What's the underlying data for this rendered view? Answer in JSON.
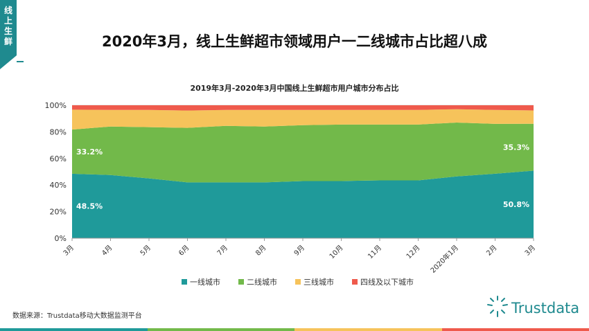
{
  "side_tab": "线上生鲜",
  "page_title": "2020年3月，线上生鲜超市领域用户一二线城市占比超八成",
  "footnote": "数据来源：Trustdata移动大数据监测平台",
  "logo_text": "Trustdata",
  "colors": {
    "tier1": "#1f9a9a",
    "tier2": "#72b94a",
    "tier3": "#f6c35b",
    "tier4": "#ef5a4c",
    "brand": "#1f8a8f"
  },
  "chart_data": {
    "type": "area",
    "stacked": true,
    "title": "2019年3月-2020年3月中国线上生鲜超市用户城市分布占比",
    "categories": [
      "3月",
      "4月",
      "5月",
      "6月",
      "7月",
      "8月",
      "9月",
      "10月",
      "11月",
      "12月",
      "2020年1月",
      "2月",
      "3月"
    ],
    "ylim": [
      0,
      100
    ],
    "yticks": [
      "0%",
      "20%",
      "40%",
      "60%",
      "80%",
      "100%"
    ],
    "grid": true,
    "legend_position": "bottom",
    "series": [
      {
        "name": "一线城市",
        "color": "#1f9a9a",
        "values": [
          48.5,
          47.5,
          45.0,
          42.0,
          42.0,
          42.0,
          43.0,
          43.0,
          43.5,
          43.5,
          46.5,
          48.5,
          50.8
        ]
      },
      {
        "name": "二线城市",
        "color": "#72b94a",
        "values": [
          33.2,
          36.5,
          38.5,
          41.0,
          42.5,
          42.0,
          42.0,
          42.5,
          42.0,
          42.0,
          40.5,
          37.5,
          35.3
        ]
      },
      {
        "name": "三线城市",
        "color": "#f6c35b",
        "values": [
          15.0,
          12.5,
          13.0,
          13.0,
          12.0,
          12.5,
          11.5,
          11.0,
          11.0,
          11.0,
          10.0,
          10.5,
          10.0
        ]
      },
      {
        "name": "四线及以下城市",
        "color": "#ef5a4c",
        "values": [
          3.3,
          3.5,
          3.5,
          4.0,
          3.5,
          3.5,
          3.5,
          3.5,
          3.5,
          3.5,
          3.0,
          3.5,
          3.9
        ]
      }
    ],
    "data_labels": [
      {
        "series": 0,
        "index": 0,
        "text": "48.5%"
      },
      {
        "series": 1,
        "index": 0,
        "text": "33.2%"
      },
      {
        "series": 0,
        "index": 12,
        "text": "50.8%"
      },
      {
        "series": 1,
        "index": 12,
        "text": "35.3%"
      }
    ]
  }
}
